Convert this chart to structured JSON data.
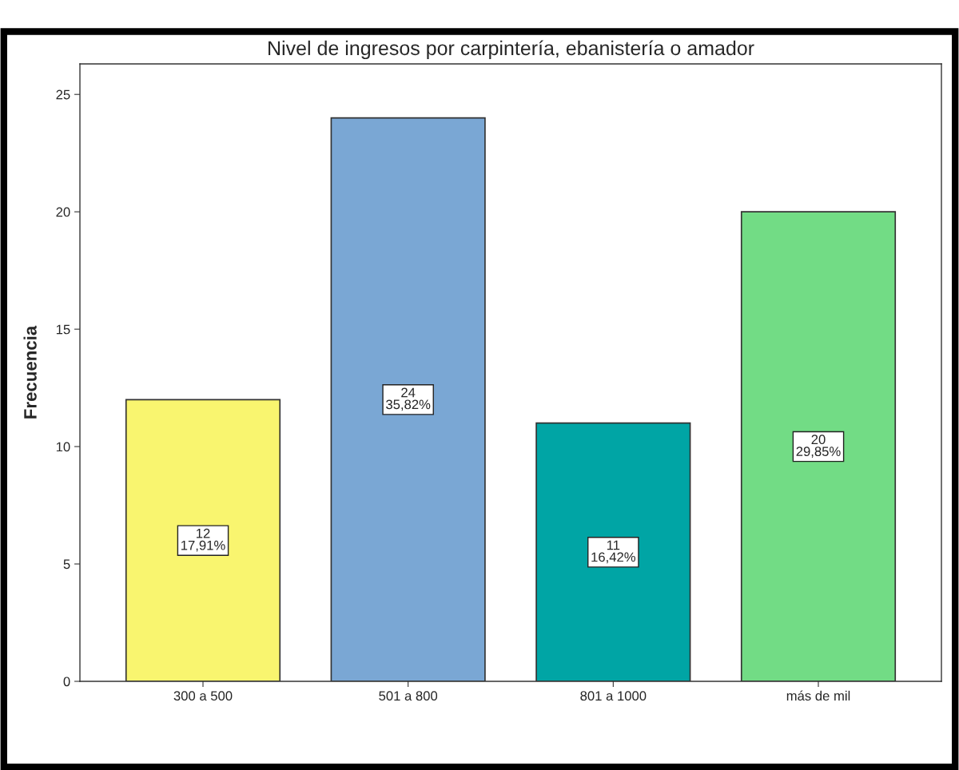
{
  "chart_data": {
    "type": "bar",
    "title": "Nivel de ingresos por carpintería, ebanistería o amador",
    "ylabel": "Frecuencia",
    "categories": [
      "300 a 500",
      "501 a 800",
      "801 a 1000",
      "más de mil"
    ],
    "values": [
      12,
      24,
      11,
      20
    ],
    "colors": [
      "#f9f56f",
      "#7aa7d4",
      "#00a5a5",
      "#72dc85"
    ],
    "value_labels": [
      "12\n17,91%",
      "24\n35,82%",
      "11\n16,42%",
      "20\n29,85%"
    ],
    "ylim": [
      0,
      26.3
    ],
    "yticks": [
      0,
      5,
      10,
      15,
      20,
      25
    ],
    "grid": false
  }
}
